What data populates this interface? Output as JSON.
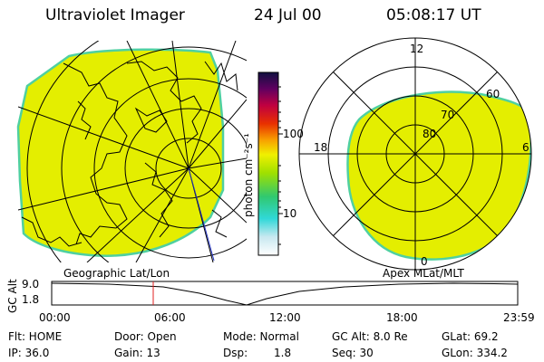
{
  "header": {
    "title": "Ultraviolet Imager",
    "date": "24 Jul 00",
    "time": "05:08:17 UT"
  },
  "colorbar": {
    "label": "photon cm⁻²s⁻¹",
    "ticks": [
      "100",
      "10"
    ]
  },
  "polar_plot": {
    "lt_labels": [
      "12",
      "18",
      "6",
      "0"
    ],
    "lat_labels": [
      "80",
      "70",
      "60"
    ]
  },
  "plot_titles": {
    "left": "Geographic Lat/Lon",
    "right": "Apex MLat/MLT"
  },
  "timeline": {
    "axis_label": "GC Alt",
    "y_ticks": [
      "9.0",
      "1.8"
    ],
    "x_ticks": [
      "00:00",
      "06:00",
      "12:00",
      "18:00",
      "23:59"
    ],
    "cursor_time": "05:08"
  },
  "status": {
    "flt": "Flt: HOME",
    "ip": "IP: 36.0",
    "door": "Door: Open",
    "gain": "Gain: 13",
    "mode": "Mode: Normal",
    "dsp_label": "Dsp:",
    "dsp_value": "1.8",
    "gc_alt": "GC Alt: 8.0 Re",
    "seq": "Seq: 30",
    "glat": "GLat:  69.2",
    "glon": "GLon: 334.2"
  },
  "colors": {
    "image_fill": "#e4ee00",
    "image_edge": "#4fd0a0",
    "cursor_line": "#e02020",
    "nadir_line": "#2030c0"
  }
}
